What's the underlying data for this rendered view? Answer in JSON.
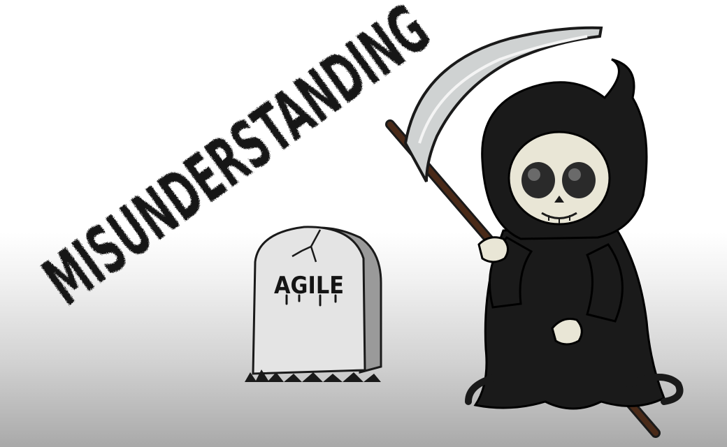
{
  "headline": {
    "text": "MISUNDERSTANDING"
  },
  "tombstone": {
    "label": "AGILE"
  },
  "icons": {
    "reaper": "grim-reaper-icon",
    "scythe": "scythe-icon",
    "tombstone": "tombstone-icon"
  },
  "colors": {
    "ink": "#141414",
    "stone": "#d9d9d9",
    "stone_shadow": "#9a9a9a",
    "robe": "#1a1a1a",
    "skull": "#e9e6d6",
    "blade": "#cfd2d2",
    "handle": "#4a2a18"
  }
}
